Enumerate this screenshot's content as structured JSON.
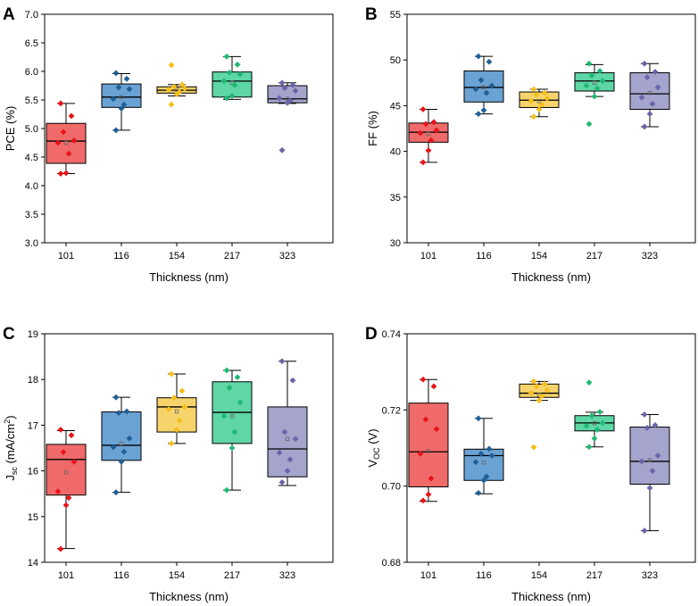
{
  "chart_data": [
    {
      "panel_label": "A",
      "type": "box",
      "xlabel": "Thickness (nm)",
      "ylabel": "PCE (%)",
      "ylabel_parts": [
        {
          "t": "PCE (%)",
          "s": "normal"
        }
      ],
      "ylim": [
        3.0,
        7.0
      ],
      "yticks": [
        3.0,
        3.5,
        4.0,
        4.5,
        5.0,
        5.5,
        6.0,
        6.5,
        7.0
      ],
      "ytick_labels": [
        "3.0",
        "3.5",
        "4.0",
        "4.5",
        "5.0",
        "5.5",
        "6.0",
        "6.5",
        "7.0"
      ],
      "categories": [
        "101",
        "116",
        "154",
        "217",
        "323"
      ],
      "colors": [
        "#f06a6a",
        "#6aa2d4",
        "#f7d46b",
        "#5ed6a5",
        "#a4a4cc"
      ],
      "point_colors": [
        "#e8131a",
        "#1f5f96",
        "#f6be19",
        "#1fb873",
        "#6a64a8"
      ],
      "series": [
        {
          "category": "101",
          "whisker_low": 4.21,
          "q1": 4.39,
          "median": 4.78,
          "q3": 5.09,
          "whisker_high": 5.44,
          "mean": 4.75,
          "points": [
            5.44,
            5.22,
            4.94,
            4.79,
            4.75,
            4.56,
            4.22,
            4.21
          ]
        },
        {
          "category": "116",
          "whisker_low": 4.97,
          "q1": 5.37,
          "median": 5.55,
          "q3": 5.78,
          "whisker_high": 5.96,
          "mean": 5.55,
          "points": [
            5.97,
            5.87,
            5.72,
            5.69,
            5.52,
            5.42,
            5.35,
            4.97
          ]
        },
        {
          "category": "154",
          "whisker_low": 5.57,
          "q1": 5.62,
          "median": 5.67,
          "q3": 5.73,
          "whisker_high": 5.77,
          "mean": 5.68,
          "points": [
            6.11,
            5.77,
            5.73,
            5.7,
            5.68,
            5.64,
            5.6,
            5.42
          ]
        },
        {
          "category": "217",
          "whisker_low": 5.51,
          "q1": 5.55,
          "median": 5.83,
          "q3": 5.99,
          "whisker_high": 6.26,
          "mean": 5.8,
          "points": [
            6.26,
            6.12,
            5.98,
            5.95,
            5.83,
            5.76,
            5.57,
            5.53
          ]
        },
        {
          "category": "323",
          "whisker_low": 5.44,
          "q1": 5.45,
          "median": 5.52,
          "q3": 5.75,
          "whisker_high": 5.8,
          "mean": 5.52,
          "points": [
            5.8,
            5.76,
            5.71,
            5.66,
            5.53,
            5.49,
            5.45,
            4.62
          ]
        }
      ]
    },
    {
      "panel_label": "B",
      "type": "box",
      "xlabel": "Thickness (nm)",
      "ylabel": "FF (%)",
      "ylabel_parts": [
        {
          "t": "FF (%)",
          "s": "normal"
        }
      ],
      "ylim": [
        30,
        55
      ],
      "yticks": [
        30,
        35,
        40,
        45,
        50,
        55
      ],
      "ytick_labels": [
        "30",
        "35",
        "40",
        "45",
        "50",
        "55"
      ],
      "categories": [
        "101",
        "116",
        "154",
        "217",
        "323"
      ],
      "colors": [
        "#f06a6a",
        "#6aa2d4",
        "#f7d46b",
        "#5ed6a5",
        "#a4a4cc"
      ],
      "point_colors": [
        "#e8131a",
        "#1f5f96",
        "#f6be19",
        "#1fb873",
        "#6a64a8"
      ],
      "series": [
        {
          "category": "101",
          "whisker_low": 38.8,
          "q1": 41.0,
          "median": 42.1,
          "q3": 43.1,
          "whisker_high": 44.6,
          "mean": 41.9,
          "points": [
            44.6,
            43.2,
            43.0,
            42.3,
            42.0,
            41.2,
            40.1,
            38.8
          ]
        },
        {
          "category": "116",
          "whisker_low": 44.1,
          "q1": 45.4,
          "median": 47.0,
          "q3": 48.8,
          "whisker_high": 50.4,
          "mean": 47.0,
          "points": [
            50.4,
            49.8,
            47.8,
            47.2,
            46.8,
            46.4,
            44.5,
            44.1
          ]
        },
        {
          "category": "154",
          "whisker_low": 43.8,
          "q1": 44.8,
          "median": 45.6,
          "q3": 46.5,
          "whisker_high": 46.8,
          "mean": 45.5,
          "points": [
            46.8,
            46.4,
            46.2,
            45.8,
            45.5,
            45.1,
            44.6,
            43.8
          ]
        },
        {
          "category": "217",
          "whisker_low": 46.0,
          "q1": 46.6,
          "median": 47.7,
          "q3": 48.6,
          "whisker_high": 49.5,
          "mean": 47.5,
          "points": [
            49.6,
            48.8,
            48.3,
            47.7,
            47.2,
            46.9,
            46.0,
            43.0
          ]
        },
        {
          "category": "323",
          "whisker_low": 42.7,
          "q1": 44.6,
          "median": 46.3,
          "q3": 48.6,
          "whisker_high": 49.6,
          "mean": 46.4,
          "points": [
            49.6,
            48.7,
            48.1,
            47.0,
            45.9,
            45.2,
            44.1,
            42.7
          ]
        }
      ]
    },
    {
      "panel_label": "C",
      "type": "box",
      "xlabel": "Thickness (nm)",
      "ylabel": "Jsc (mA/cm2)",
      "ylabel_parts": [
        {
          "t": "J",
          "s": "normal"
        },
        {
          "t": "sc",
          "s": "sub"
        },
        {
          "t": " (mA/cm",
          "s": "normal"
        },
        {
          "t": "2",
          "s": "sup"
        },
        {
          "t": ")",
          "s": "normal"
        }
      ],
      "ylim": [
        14,
        19
      ],
      "yticks": [
        14,
        15,
        16,
        17,
        18,
        19
      ],
      "ytick_labels": [
        "14",
        "15",
        "16",
        "17",
        "18",
        "19"
      ],
      "categories": [
        "101",
        "116",
        "154",
        "217",
        "323"
      ],
      "colors": [
        "#f06a6a",
        "#6aa2d4",
        "#f7d46b",
        "#5ed6a5",
        "#a4a4cc"
      ],
      "point_colors": [
        "#e8131a",
        "#1f5f96",
        "#f6be19",
        "#1fb873",
        "#6a64a8"
      ],
      "series": [
        {
          "category": "101",
          "whisker_low": 14.3,
          "q1": 15.47,
          "median": 16.25,
          "q3": 16.58,
          "whisker_high": 16.88,
          "mean": 15.97,
          "points": [
            16.9,
            16.78,
            16.41,
            16.2,
            15.55,
            15.41,
            15.25,
            14.29
          ]
        },
        {
          "category": "116",
          "whisker_low": 15.53,
          "q1": 16.23,
          "median": 16.56,
          "q3": 17.29,
          "whisker_high": 17.61,
          "mean": 16.6,
          "points": [
            17.61,
            17.3,
            17.27,
            16.71,
            16.52,
            16.42,
            16.2,
            15.53
          ]
        },
        {
          "category": "154",
          "whisker_low": 16.6,
          "q1": 16.85,
          "median": 17.4,
          "q3": 17.6,
          "whisker_high": 18.12,
          "mean": 17.3,
          "points": [
            18.12,
            17.75,
            17.6,
            17.4,
            17.35,
            17.1,
            16.9,
            16.6
          ]
        },
        {
          "category": "217",
          "whisker_low": 15.58,
          "q1": 16.6,
          "median": 17.28,
          "q3": 17.95,
          "whisker_high": 18.2,
          "mean": 17.2,
          "points": [
            18.2,
            18.05,
            17.82,
            17.5,
            17.2,
            16.85,
            16.5,
            15.58
          ]
        },
        {
          "category": "323",
          "whisker_low": 15.68,
          "q1": 15.87,
          "median": 16.48,
          "q3": 17.4,
          "whisker_high": 18.4,
          "mean": 16.7,
          "points": [
            18.4,
            17.98,
            16.85,
            16.7,
            16.4,
            16.25,
            16.0,
            15.75
          ]
        }
      ]
    },
    {
      "panel_label": "D",
      "type": "box",
      "xlabel": "Thickness (nm)",
      "ylabel": "VOC (V)",
      "ylabel_parts": [
        {
          "t": "V",
          "s": "normal"
        },
        {
          "t": "OC",
          "s": "sub"
        },
        {
          "t": " (V)",
          "s": "normal"
        }
      ],
      "ylim": [
        0.68,
        0.74
      ],
      "yticks": [
        0.68,
        0.7,
        0.72,
        0.74
      ],
      "ytick_labels": [
        "0.68",
        "0.70",
        "0.72",
        "0.74"
      ],
      "categories": [
        "101",
        "116",
        "154",
        "217",
        "323"
      ],
      "colors": [
        "#f06a6a",
        "#6aa2d4",
        "#f7d46b",
        "#5ed6a5",
        "#a4a4cc"
      ],
      "point_colors": [
        "#e8131a",
        "#1f5f96",
        "#f6be19",
        "#1fb873",
        "#6a64a8"
      ],
      "series": [
        {
          "category": "101",
          "whisker_low": 0.696,
          "q1": 0.6998,
          "median": 0.709,
          "q3": 0.7218,
          "whisker_high": 0.728,
          "mean": 0.7092,
          "points": [
            0.728,
            0.7262,
            0.7175,
            0.715,
            0.7085,
            0.702,
            0.6978,
            0.6962
          ]
        },
        {
          "category": "116",
          "whisker_low": 0.698,
          "q1": 0.7015,
          "median": 0.708,
          "q3": 0.7097,
          "whisker_high": 0.7178,
          "mean": 0.7062,
          "points": [
            0.7178,
            0.7098,
            0.7085,
            0.708,
            0.7063,
            0.7025,
            0.7015,
            0.6982
          ]
        },
        {
          "category": "154",
          "whisker_low": 0.7225,
          "q1": 0.7233,
          "median": 0.7244,
          "q3": 0.7268,
          "whisker_high": 0.7275,
          "mean": 0.724,
          "points": [
            0.7275,
            0.7268,
            0.7262,
            0.7252,
            0.7245,
            0.7236,
            0.7225,
            0.7102
          ]
        },
        {
          "category": "217",
          "whisker_low": 0.7103,
          "q1": 0.7145,
          "median": 0.7166,
          "q3": 0.7185,
          "whisker_high": 0.7194,
          "mean": 0.7165,
          "points": [
            0.7272,
            0.7195,
            0.7185,
            0.7166,
            0.7158,
            0.7148,
            0.7125,
            0.7103
          ]
        },
        {
          "category": "323",
          "whisker_low": 0.6883,
          "q1": 0.7005,
          "median": 0.7065,
          "q3": 0.7155,
          "whisker_high": 0.7188,
          "mean": 0.7068,
          "points": [
            0.7188,
            0.716,
            0.7153,
            0.708,
            0.7065,
            0.704,
            0.6995,
            0.6883
          ]
        }
      ]
    }
  ]
}
